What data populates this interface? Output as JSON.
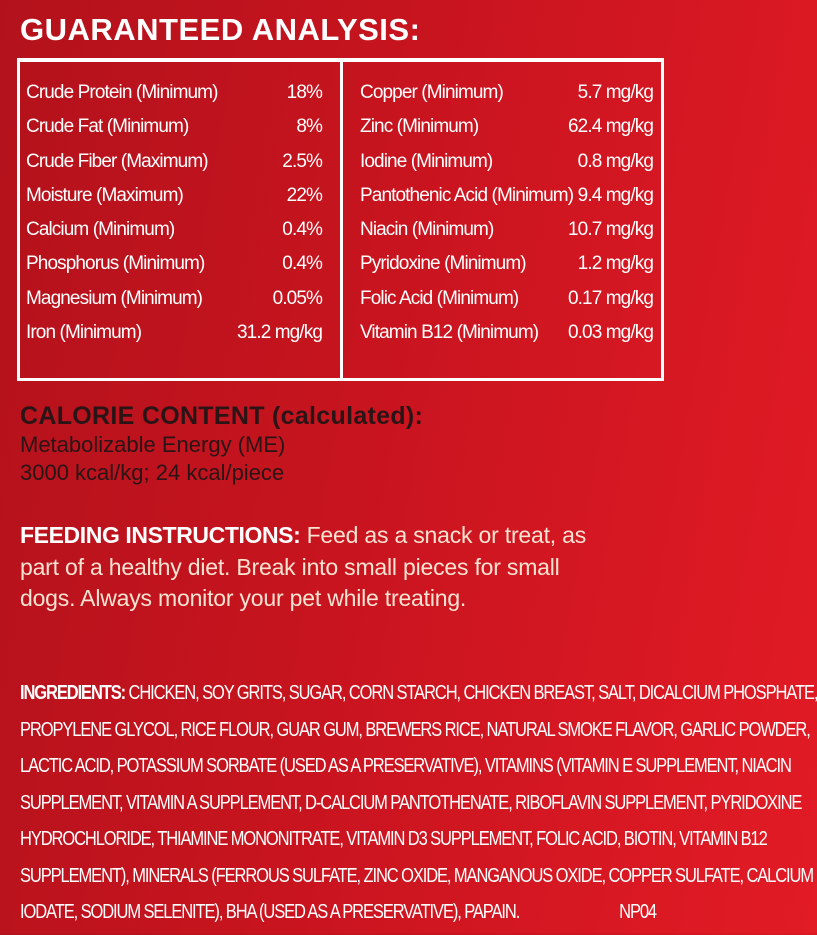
{
  "analysis": {
    "title": "GUARANTEED ANALYSIS:",
    "left": [
      {
        "label": "Crude Protein (Minimum)",
        "value": "18%"
      },
      {
        "label": "Crude Fat (Minimum)",
        "value": "8%"
      },
      {
        "label": "Crude Fiber (Maximum)",
        "value": "2.5%"
      },
      {
        "label": "Moisture (Maximum)",
        "value": "22%"
      },
      {
        "label": "Calcium (Minimum)",
        "value": "0.4%"
      },
      {
        "label": "Phosphorus (Minimum)",
        "value": "0.4%"
      },
      {
        "label": "Magnesium (Minimum)",
        "value": "0.05%"
      },
      {
        "label": "Iron (Minimum)",
        "value": "31.2 mg/kg"
      }
    ],
    "right": [
      {
        "label": "Copper (Minimum)",
        "value": "5.7 mg/kg"
      },
      {
        "label": "Zinc (Minimum)",
        "value": "62.4 mg/kg"
      },
      {
        "label": "Iodine (Minimum)",
        "value": "0.8 mg/kg"
      },
      {
        "label": "Pantothenic Acid (Minimum)",
        "value": "9.4 mg/kg"
      },
      {
        "label": "Niacin (Minimum)",
        "value": "10.7 mg/kg"
      },
      {
        "label": "Pyridoxine (Minimum)",
        "value": "1.2 mg/kg"
      },
      {
        "label": "Folic Acid (Minimum)",
        "value": "0.17 mg/kg"
      },
      {
        "label": "Vitamin B12 (Minimum)",
        "value": "0.03 mg/kg"
      }
    ]
  },
  "calorie": {
    "heading": "CALORIE CONTENT (calculated):",
    "line1": "Metabolizable Energy (ME)",
    "line2": "3000 kcal/kg; 24 kcal/piece"
  },
  "feeding": {
    "heading": "FEEDING INSTRUCTIONS:",
    "text": " Feed as a snack or treat, as part of a healthy diet. Break into small pieces for small dogs. Always monitor your pet while treating."
  },
  "ingredients": {
    "heading": "INGREDIENTS:",
    "lines": [
      " CHICKEN, SOY GRITS, SUGAR, CORN STARCH, CHICKEN BREAST, SALT, DICALCIUM PHOSPHATE,",
      "PROPYLENE GLYCOL, RICE FLOUR, GUAR GUM, BREWERS RICE, NATURAL SMOKE FLAVOR, GARLIC POWDER,",
      "LACTIC ACID, POTASSIUM SORBATE (USED AS A PRESERVATIVE), VITAMINS (VITAMIN E SUPPLEMENT, NIACIN",
      "SUPPLEMENT, VITAMIN A SUPPLEMENT, D-CALCIUM PANTOTHENATE, RIBOFLAVIN SUPPLEMENT, PYRIDOXINE",
      "HYDROCHLORIDE, THIAMINE MONONITRATE, VITAMIN D3 SUPPLEMENT, FOLIC ACID, BIOTIN, VITAMIN B12",
      "SUPPLEMENT), MINERALS (FERROUS SULFATE, ZINC OXIDE, MANGANOUS OXIDE, COPPER SULFATE, CALCIUM",
      "IODATE, SODIUM SELENITE), BHA (USED AS A PRESERVATIVE), PAPAIN."
    ],
    "code": "NP04"
  },
  "colors": {
    "background": "#c8141f",
    "text": "#ffffff",
    "calorie_text": "#2a1416",
    "feeding_text": "#fbe3d2"
  }
}
